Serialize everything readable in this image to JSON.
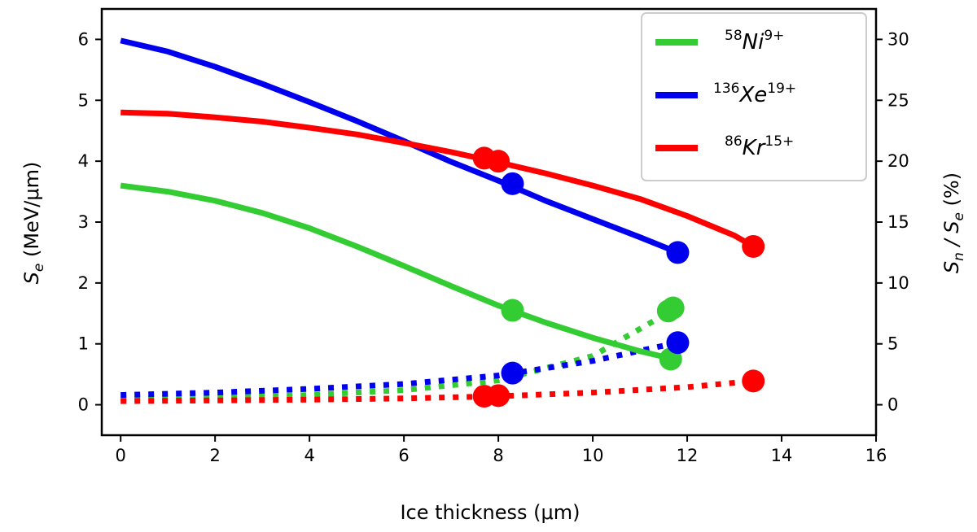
{
  "chart_data": {
    "type": "line",
    "title": "",
    "xlabel": "Ice thickness (μm)",
    "ylabel_left": {
      "symbol": "S",
      "sub": "e",
      "rest": " (MeV/μm)"
    },
    "ylabel_right": {
      "s1": "S",
      "sub1": "n",
      "mid": " / S",
      "sub2": "e",
      "rest": " (%)"
    },
    "xlim": [
      -0.4,
      16
    ],
    "ylim_left": [
      -0.5,
      6.5
    ],
    "ylim_right": [
      -2.5,
      32.5
    ],
    "xticks": [
      0,
      2,
      4,
      6,
      8,
      10,
      12,
      14,
      16
    ],
    "xtick_labels": [
      "0",
      "2",
      "4",
      "6",
      "8",
      "10",
      "12",
      "14",
      "16"
    ],
    "yticks_left": [
      0,
      1,
      2,
      3,
      4,
      5,
      6
    ],
    "ytick_labels_left": [
      "0",
      "1",
      "2",
      "3",
      "4",
      "5",
      "6"
    ],
    "yticks_right": [
      0,
      5,
      10,
      15,
      20,
      25,
      30
    ],
    "ytick_labels_right": [
      "0",
      "5",
      "10",
      "15",
      "20",
      "25",
      "30"
    ],
    "legend_position": "top-right",
    "series": [
      {
        "name": "58Ni9+",
        "legend": {
          "mass": "58",
          "el": "Ni",
          "charge": "9+"
        },
        "color": "#33cc33",
        "se": {
          "x": [
            0,
            1,
            2,
            3,
            4,
            5,
            6,
            7,
            8,
            9,
            10,
            11,
            11.7
          ],
          "y": [
            3.6,
            3.5,
            3.35,
            3.15,
            2.9,
            2.6,
            2.28,
            1.95,
            1.63,
            1.35,
            1.1,
            0.88,
            0.75
          ]
        },
        "se_markers": {
          "x": [
            8.3,
            11.65
          ],
          "y": [
            1.55,
            0.75
          ]
        },
        "ratio": {
          "x": [
            0,
            2,
            4,
            6,
            8,
            10,
            11.7
          ],
          "y": [
            0.5,
            0.6,
            0.8,
            1.2,
            2.0,
            4.0,
            7.8
          ]
        },
        "ratio_markers": {
          "x": [
            11.6,
            11.7
          ],
          "y": [
            7.7,
            7.95
          ]
        }
      },
      {
        "name": "136Xe19+",
        "legend": {
          "mass": "136",
          "el": "Xe",
          "charge": "19+"
        },
        "color": "#0000ee",
        "se": {
          "x": [
            0,
            1,
            2,
            3,
            4,
            5,
            6,
            7,
            8,
            9,
            10,
            11,
            11.8
          ],
          "y": [
            5.98,
            5.8,
            5.55,
            5.27,
            4.97,
            4.66,
            4.33,
            3.99,
            3.68,
            3.35,
            3.05,
            2.75,
            2.5
          ]
        },
        "se_markers": {
          "x": [
            8.3,
            11.8
          ],
          "y": [
            3.63,
            2.5
          ]
        },
        "ratio": {
          "x": [
            0,
            2,
            4,
            6,
            8,
            10,
            11.8
          ],
          "y": [
            0.8,
            1.0,
            1.3,
            1.7,
            2.4,
            3.6,
            5.1
          ]
        },
        "ratio_markers": {
          "x": [
            8.3,
            11.8
          ],
          "y": [
            2.6,
            5.1
          ]
        }
      },
      {
        "name": "86Kr15+",
        "legend": {
          "mass": "86",
          "el": "Kr",
          "charge": "15+"
        },
        "color": "#ff0000",
        "se": {
          "x": [
            0,
            1,
            2,
            3,
            4,
            5,
            6,
            7,
            8,
            9,
            10,
            11,
            12,
            13,
            13.4
          ],
          "y": [
            4.8,
            4.78,
            4.72,
            4.65,
            4.55,
            4.44,
            4.3,
            4.15,
            3.98,
            3.8,
            3.6,
            3.38,
            3.1,
            2.78,
            2.6
          ]
        },
        "se_markers": {
          "x": [
            7.7,
            8.0,
            13.4
          ],
          "y": [
            4.05,
            4.0,
            2.6
          ]
        },
        "ratio": {
          "x": [
            0,
            2,
            4,
            6,
            8,
            10,
            12,
            13.4
          ],
          "y": [
            0.3,
            0.35,
            0.42,
            0.52,
            0.7,
            1.0,
            1.45,
            1.95
          ]
        },
        "ratio_markers": {
          "x": [
            7.7,
            8.0,
            13.4
          ],
          "y": [
            0.7,
            0.75,
            1.95
          ]
        }
      }
    ]
  }
}
